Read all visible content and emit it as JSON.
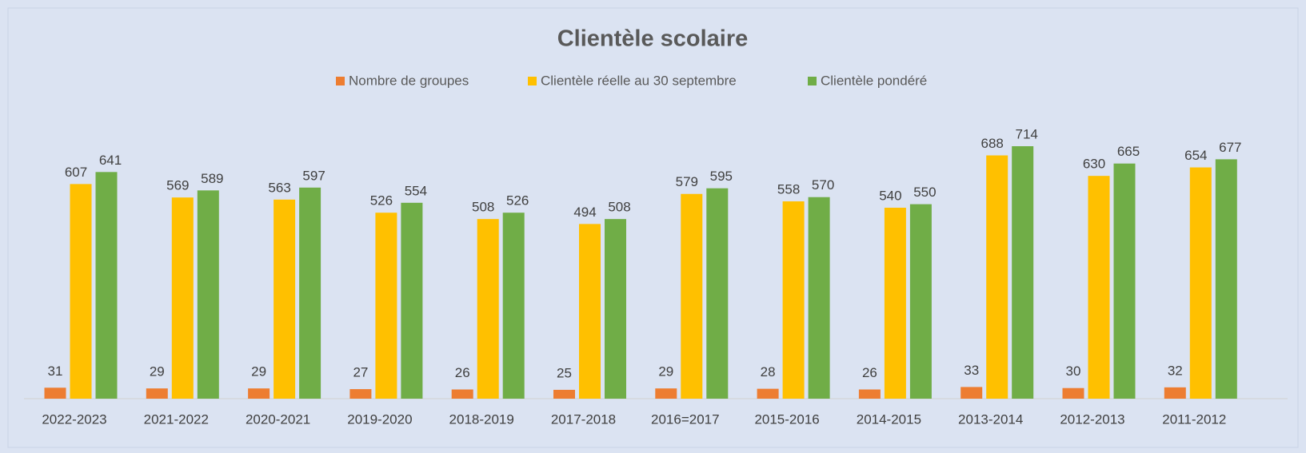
{
  "chart_data": {
    "type": "bar",
    "title": "Clientèle scolaire",
    "categories": [
      "2022-2023",
      "2021-2022",
      "2020-2021",
      "2019-2020",
      "2018-2019",
      "2017-2018",
      "2016=2017",
      "2015-2016",
      "2014-2015",
      "2013-2014",
      "2012-2013",
      "2011-2012"
    ],
    "series": [
      {
        "name": "Nombre de groupes",
        "color": "#ed7d31",
        "values": [
          31,
          29,
          29,
          27,
          26,
          25,
          29,
          28,
          26,
          33,
          30,
          32
        ]
      },
      {
        "name": "Clientèle réelle au 30 septembre",
        "color": "#ffc000",
        "values": [
          607,
          569,
          563,
          526,
          508,
          494,
          579,
          558,
          540,
          688,
          630,
          654
        ]
      },
      {
        "name": "Clientèle pondéré",
        "color": "#70ad47",
        "values": [
          641,
          589,
          597,
          554,
          526,
          508,
          595,
          570,
          550,
          714,
          665,
          677
        ]
      }
    ],
    "legend": "top"
  }
}
